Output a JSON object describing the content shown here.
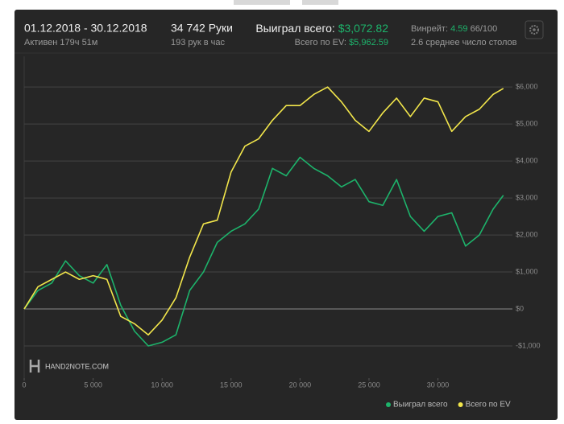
{
  "header": {
    "period": "01.12.2018 - 30.12.2018",
    "active": "Активен 179ч 51м",
    "hands": "34 742 Руки",
    "hands_per_hour": "193 рук в час",
    "won_label": "Выиграл всего:",
    "won_value": "$3,072.82",
    "ev_label": "Всего по EV:",
    "ev_value": "$5,962.59",
    "winrate_label": "Винрейт:",
    "winrate_value": "4.59",
    "winrate_unit": "66/100",
    "tables": "2.6 среднее число столов"
  },
  "logo": "HAND2NOTE.COM",
  "chart_data": {
    "type": "line",
    "x": [
      0,
      1000,
      2000,
      3000,
      4000,
      5000,
      6000,
      7000,
      8000,
      9000,
      10000,
      11000,
      12000,
      13000,
      14000,
      15000,
      16000,
      17000,
      18000,
      19000,
      20000,
      21000,
      22000,
      23000,
      24000,
      25000,
      26000,
      27000,
      28000,
      29000,
      30000,
      31000,
      32000,
      33000,
      34000,
      34742
    ],
    "series": [
      {
        "name": "Выиграл всего",
        "color": "#1db36b",
        "values": [
          0,
          500,
          700,
          1300,
          900,
          700,
          1200,
          100,
          -600,
          -1000,
          -900,
          -700,
          500,
          1000,
          1800,
          2100,
          2300,
          2700,
          3800,
          3600,
          4100,
          3800,
          3600,
          3300,
          3500,
          2900,
          2800,
          3500,
          2500,
          2100,
          2500,
          2600,
          1700,
          2000,
          2700,
          3072.82
        ]
      },
      {
        "name": "Всего по EV",
        "color": "#f2e64b",
        "values": [
          0,
          600,
          800,
          1000,
          800,
          900,
          800,
          -200,
          -400,
          -700,
          -300,
          300,
          1400,
          2300,
          2400,
          3700,
          4400,
          4600,
          5100,
          5500,
          5500,
          5800,
          6000,
          5600,
          5100,
          4800,
          5300,
          5700,
          5200,
          5700,
          5600,
          4800,
          5200,
          5400,
          5800,
          5962.59
        ]
      }
    ],
    "xlim": [
      0,
      35400
    ],
    "ylim": [
      -1870,
      6830
    ],
    "xticks": [
      0,
      {
        "value": 5000,
        "label": "5 000"
      },
      {
        "value": 10000,
        "label": "10 000"
      },
      {
        "value": 15000,
        "label": "15 000"
      },
      {
        "value": 20000,
        "label": "20 000"
      },
      {
        "value": 25000,
        "label": "25 000"
      },
      {
        "value": 30000,
        "label": "30 000"
      }
    ],
    "yticks": [
      {
        "value": -1000,
        "label": "-$1,000"
      },
      {
        "value": 0,
        "label": "$0"
      },
      {
        "value": 1000,
        "label": "$1,000"
      },
      {
        "value": 2000,
        "label": "$2,000"
      },
      {
        "value": 3000,
        "label": "$3,000"
      },
      {
        "value": 4000,
        "label": "$4,000"
      },
      {
        "value": 5000,
        "label": "$5,000"
      },
      {
        "value": 6000,
        "label": "$6,000"
      }
    ],
    "grid": true
  }
}
